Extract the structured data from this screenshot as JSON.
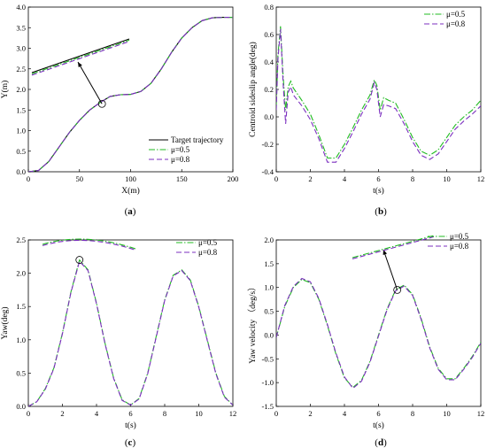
{
  "colors": {
    "target": "#000000",
    "mu05": "#22bb22",
    "mu08": "#7b2fbf"
  },
  "chart_data": [
    {
      "id": "a",
      "type": "line",
      "panel_label": "a",
      "xlabel": "X(m)",
      "ylabel": "Y(m)",
      "xlim": [
        0,
        200
      ],
      "ylim": [
        0,
        4.0
      ],
      "xticks": [
        "0",
        "50",
        "100",
        "150",
        "200"
      ],
      "yticks": [
        "0.0",
        "0.5",
        "1.0",
        "1.5",
        "2.0",
        "2.5",
        "3.0",
        "3.5",
        "4.0"
      ],
      "legend_position": "bottom-right",
      "series": [
        {
          "name": "Target trajectory",
          "style": "solid",
          "color": "#000000",
          "x": [
            0,
            10,
            20,
            30,
            40,
            50,
            60,
            70,
            80,
            90,
            100,
            110,
            120,
            130,
            140,
            150,
            160,
            170,
            180,
            190,
            200
          ],
          "y": [
            0,
            0.03,
            0.25,
            0.6,
            0.95,
            1.25,
            1.5,
            1.68,
            1.83,
            1.87,
            1.88,
            1.95,
            2.15,
            2.5,
            2.9,
            3.25,
            3.5,
            3.67,
            3.74,
            3.75,
            3.75
          ]
        },
        {
          "name": "μ=0.5",
          "style": "dashdot",
          "color": "#22bb22",
          "x": [
            0,
            10,
            20,
            30,
            40,
            50,
            60,
            70,
            80,
            90,
            100,
            110,
            120,
            130,
            140,
            150,
            160,
            170,
            180,
            190,
            200
          ],
          "y": [
            0,
            0.03,
            0.25,
            0.6,
            0.95,
            1.25,
            1.5,
            1.68,
            1.83,
            1.87,
            1.88,
            1.95,
            2.15,
            2.5,
            2.9,
            3.25,
            3.5,
            3.67,
            3.74,
            3.75,
            3.75
          ]
        },
        {
          "name": "μ=0.8",
          "style": "dashed",
          "color": "#7b2fbf",
          "x": [
            0,
            10,
            20,
            30,
            40,
            50,
            60,
            70,
            80,
            90,
            100,
            110,
            120,
            130,
            140,
            150,
            160,
            170,
            180,
            190,
            200
          ],
          "y": [
            0,
            0.03,
            0.25,
            0.6,
            0.95,
            1.25,
            1.5,
            1.68,
            1.83,
            1.87,
            1.88,
            1.95,
            2.15,
            2.5,
            2.9,
            3.25,
            3.5,
            3.67,
            3.74,
            3.75,
            3.75
          ]
        }
      ],
      "zoom_inset": {
        "at": [
          72,
          1.65
        ]
      }
    },
    {
      "id": "b",
      "type": "line",
      "panel_label": "b",
      "xlabel": "t(s)",
      "ylabel": "Centroid sideslip angle(deg)",
      "xlim": [
        0,
        12
      ],
      "ylim": [
        -0.4,
        0.8
      ],
      "xticks": [
        "0",
        "2",
        "4",
        "6",
        "8",
        "10",
        "12"
      ],
      "yticks": [
        "-0.4",
        "-0.2",
        "0.0",
        "0.2",
        "0.4",
        "0.6",
        "0.8"
      ],
      "legend_position": "top-right",
      "series": [
        {
          "name": "μ=0.5",
          "style": "dashdot",
          "color": "#22bb22",
          "x": [
            0,
            0.1,
            0.25,
            0.4,
            0.55,
            0.7,
            0.85,
            1.0,
            1.5,
            2.0,
            2.5,
            3.0,
            3.5,
            4.0,
            4.5,
            5.0,
            5.5,
            5.75,
            5.9,
            6.1,
            6.3,
            6.6,
            7.0,
            7.5,
            8.0,
            8.5,
            9.0,
            9.5,
            10.0,
            10.5,
            11.0,
            11.5,
            12.0
          ],
          "y": [
            0.08,
            0.45,
            0.66,
            0.3,
            0.05,
            0.22,
            0.26,
            0.21,
            0.12,
            0.02,
            -0.13,
            -0.3,
            -0.3,
            -0.2,
            -0.08,
            0.05,
            0.16,
            0.27,
            0.23,
            0.05,
            0.14,
            0.12,
            0.1,
            -0.02,
            -0.15,
            -0.25,
            -0.28,
            -0.24,
            -0.15,
            -0.06,
            0.0,
            0.05,
            0.12
          ]
        },
        {
          "name": "μ=0.8",
          "style": "dashed",
          "color": "#7b2fbf",
          "x": [
            0,
            0.1,
            0.25,
            0.4,
            0.55,
            0.7,
            0.85,
            1.0,
            1.5,
            2.0,
            2.5,
            3.0,
            3.5,
            4.0,
            4.5,
            5.0,
            5.5,
            5.75,
            5.9,
            6.1,
            6.3,
            6.6,
            7.0,
            7.5,
            8.0,
            8.5,
            9.0,
            9.5,
            10.0,
            10.5,
            11.0,
            11.5,
            12.0
          ],
          "y": [
            0.05,
            0.42,
            0.64,
            0.25,
            -0.05,
            0.18,
            0.22,
            0.16,
            0.08,
            -0.02,
            -0.16,
            -0.33,
            -0.33,
            -0.23,
            -0.11,
            0.02,
            0.13,
            0.25,
            0.2,
            0.0,
            0.09,
            0.08,
            0.06,
            -0.05,
            -0.18,
            -0.28,
            -0.31,
            -0.27,
            -0.18,
            -0.09,
            -0.03,
            0.02,
            0.08
          ]
        }
      ]
    },
    {
      "id": "c",
      "type": "line",
      "panel_label": "c",
      "xlabel": "t(s)",
      "ylabel": "Yaw(deg)",
      "xlim": [
        0,
        12
      ],
      "ylim": [
        0.0,
        2.5
      ],
      "xticks": [
        "0",
        "2",
        "4",
        "6",
        "8",
        "10",
        "12"
      ],
      "yticks": [
        "0.0",
        "0.5",
        "1.0",
        "1.5",
        "2.0",
        "2.5"
      ],
      "legend_position": "top-right",
      "series": [
        {
          "name": "μ=0.5",
          "style": "dashdot",
          "color": "#22bb22",
          "x": [
            0,
            0.5,
            1,
            1.5,
            2,
            2.5,
            3,
            3.5,
            4,
            4.5,
            5,
            5.5,
            6,
            6.5,
            7,
            7.5,
            8,
            8.5,
            9,
            9.5,
            10,
            10.5,
            11,
            11.5,
            12
          ],
          "y": [
            0,
            0.07,
            0.27,
            0.58,
            1.1,
            1.72,
            2.2,
            2.05,
            1.55,
            0.95,
            0.43,
            0.1,
            0.02,
            0.12,
            0.5,
            1.05,
            1.6,
            1.97,
            2.05,
            1.9,
            1.5,
            1.0,
            0.5,
            0.15,
            0.02
          ]
        },
        {
          "name": "μ=0.8",
          "style": "dashed",
          "color": "#7b2fbf",
          "x": [
            0,
            0.5,
            1,
            1.5,
            2,
            2.5,
            3,
            3.5,
            4,
            4.5,
            5,
            5.5,
            6,
            6.5,
            7,
            7.5,
            8,
            8.5,
            9,
            9.5,
            10,
            10.5,
            11,
            11.5,
            12
          ],
          "y": [
            0,
            0.07,
            0.26,
            0.57,
            1.09,
            1.71,
            2.18,
            2.04,
            1.54,
            0.94,
            0.42,
            0.09,
            0.02,
            0.11,
            0.49,
            1.04,
            1.59,
            1.96,
            2.04,
            1.89,
            1.49,
            0.99,
            0.49,
            0.14,
            0.02
          ]
        }
      ],
      "zoom_inset": {
        "at": [
          3,
          2.2
        ]
      }
    },
    {
      "id": "d",
      "type": "line",
      "panel_label": "d",
      "xlabel": "t(s)",
      "ylabel": "Yaw velocity （deg/s）",
      "xlim": [
        0,
        12
      ],
      "ylim": [
        -1.5,
        2.0
      ],
      "xticks": [
        "0",
        "2",
        "4",
        "6",
        "8",
        "10",
        "12"
      ],
      "yticks": [
        "-1.5",
        "-1.0",
        "-0.5",
        "0.0",
        "0.5",
        "1.0",
        "1.5",
        "2.0"
      ],
      "legend_position": "top-right",
      "series": [
        {
          "name": "μ=0.5",
          "style": "dashdot",
          "color": "#22bb22",
          "x": [
            0,
            0.5,
            1,
            1.5,
            2,
            2.5,
            3,
            3.5,
            4,
            4.5,
            5,
            5.5,
            6,
            6.5,
            7,
            7.5,
            8,
            8.5,
            9,
            9.5,
            10,
            10.5,
            11,
            11.5,
            12
          ],
          "y": [
            -0.05,
            0.6,
            1.0,
            1.17,
            1.1,
            0.75,
            0.2,
            -0.4,
            -0.9,
            -1.1,
            -0.95,
            -0.55,
            0.0,
            0.55,
            0.95,
            1.05,
            0.85,
            0.35,
            -0.25,
            -0.7,
            -0.92,
            -0.92,
            -0.7,
            -0.45,
            -0.15
          ]
        },
        {
          "name": "μ=0.8",
          "style": "dashed",
          "color": "#7b2fbf",
          "x": [
            0,
            0.5,
            1,
            1.5,
            2,
            2.5,
            3,
            3.5,
            4,
            4.5,
            5,
            5.5,
            6,
            6.5,
            7,
            7.5,
            8,
            8.5,
            9,
            9.5,
            10,
            10.5,
            11,
            11.5,
            12
          ],
          "y": [
            -0.05,
            0.62,
            1.02,
            1.19,
            1.12,
            0.77,
            0.22,
            -0.38,
            -0.88,
            -1.12,
            -0.97,
            -0.57,
            -0.02,
            0.53,
            0.93,
            1.03,
            0.83,
            0.33,
            -0.27,
            -0.72,
            -0.94,
            -0.94,
            -0.72,
            -0.47,
            -0.17
          ]
        }
      ],
      "zoom_inset": {
        "at": [
          7.1,
          0.95
        ]
      }
    }
  ]
}
